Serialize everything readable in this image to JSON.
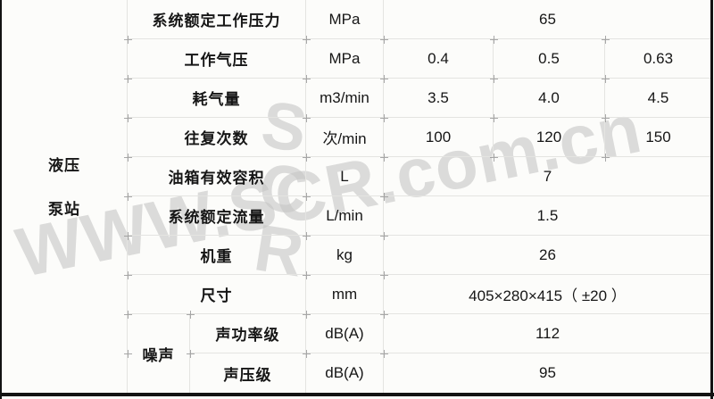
{
  "watermark": {
    "line": "WWW.SCR.com.cn",
    "big_letters": [
      "S",
      "C",
      "R"
    ]
  },
  "table": {
    "group_label_lines": [
      "液压",
      "泵站"
    ],
    "noise_group_label": "噪声",
    "rows": [
      {
        "label": "系统额定工作压力",
        "unit": "MPa",
        "values": [
          "65"
        ]
      },
      {
        "label": "工作气压",
        "unit": "MPa",
        "values": [
          "0.4",
          "0.5",
          "0.63"
        ]
      },
      {
        "label": "耗气量",
        "unit": "m3/min",
        "values": [
          "3.5",
          "4.0",
          "4.5"
        ]
      },
      {
        "label": "往复次数",
        "unit": "次/min",
        "values": [
          "100",
          "120",
          "150"
        ]
      },
      {
        "label": "油箱有效容积",
        "unit": "L",
        "values": [
          "7"
        ]
      },
      {
        "label": "系统额定流量",
        "unit": "L/min",
        "values": [
          "1.5"
        ]
      },
      {
        "label": "机重",
        "unit": "kg",
        "values": [
          "26"
        ]
      },
      {
        "label": "尺寸",
        "unit": "mm",
        "values": [
          "405×280×415（ ±20 ）"
        ]
      },
      {
        "label": "声功率级",
        "unit": "dB(A)",
        "values": [
          "112"
        ]
      },
      {
        "label": "声压级",
        "unit": "dB(A)",
        "values": [
          "95"
        ]
      }
    ]
  }
}
